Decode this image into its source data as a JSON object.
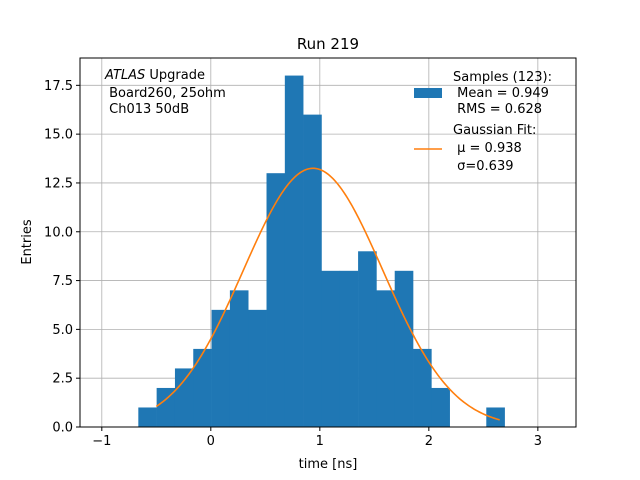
{
  "chart_data": {
    "type": "bar",
    "title": "Run 219",
    "xlabel": "time [ns]",
    "ylabel": "Entries",
    "xlim": [
      -1.2,
      3.35
    ],
    "ylim": [
      0,
      18.9
    ],
    "grid": true,
    "xticks": [
      -1,
      0,
      1,
      2,
      3
    ],
    "xtick_labels": [
      "−1",
      "0",
      "1",
      "2",
      "3"
    ],
    "yticks": [
      0.0,
      2.5,
      5.0,
      7.5,
      10.0,
      12.5,
      15.0,
      17.5
    ],
    "ytick_labels": [
      "0.0",
      "2.5",
      "5.0",
      "7.5",
      "10.0",
      "12.5",
      "15.0",
      "17.5"
    ],
    "histogram": {
      "bin_edges": [
        -0.665,
        -0.497,
        -0.329,
        -0.161,
        0.007,
        0.175,
        0.343,
        0.511,
        0.679,
        0.847,
        1.015,
        1.183,
        1.351,
        1.519,
        1.687,
        1.855,
        2.023,
        2.191,
        2.359,
        2.527,
        2.695,
        2.863
      ],
      "counts": [
        1,
        2,
        3,
        4,
        6,
        7,
        6,
        13,
        18,
        16,
        8,
        8,
        9,
        7,
        8,
        4,
        2,
        0,
        0,
        1,
        0
      ]
    },
    "fit": {
      "mu": 0.938,
      "sigma": 0.639,
      "amplitude": 13.25,
      "x_range": [
        -0.5,
        2.65
      ]
    },
    "legend": {
      "placement": "upper right",
      "entries": [
        {
          "label_lines": [
            "Samples (123):",
            " Mean = 0.949",
            " RMS = 0.628"
          ],
          "color": "#1f77b4",
          "kind": "patch"
        },
        {
          "label_lines": [
            "Gaussian Fit:",
            " μ = 0.938",
            " σ=0.639"
          ],
          "color": "#ff7f0e",
          "kind": "line"
        }
      ]
    },
    "annotation": {
      "line1_italic": "ATLAS",
      "line1_rest": " Upgrade",
      "line2": " Board260, 25ohm",
      "line3": " Ch013 50dB"
    }
  }
}
